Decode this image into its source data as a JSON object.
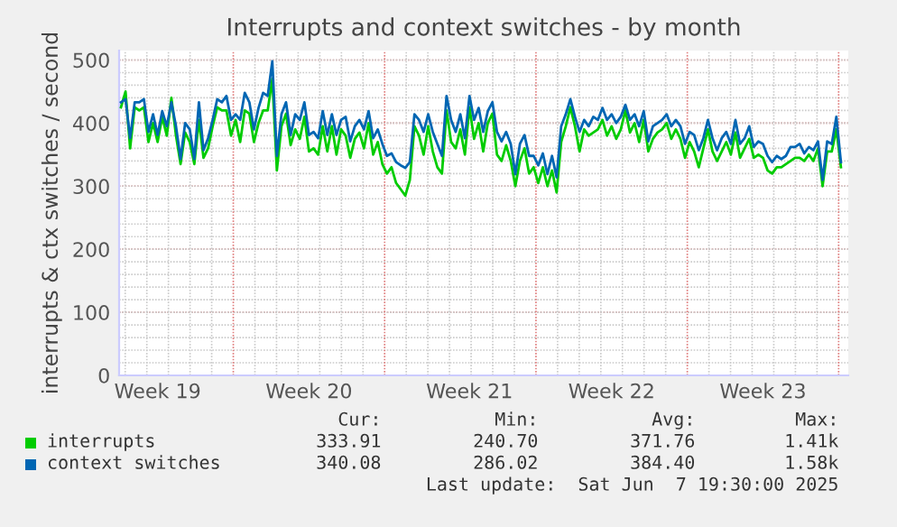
{
  "chart_data": {
    "type": "line",
    "title": "Interrupts and context switches - by month",
    "ylabel": "interrupts & ctx switches / second",
    "categories": [
      null,
      null,
      null,
      null,
      null,
      null,
      null,
      null,
      "Week 19",
      null,
      null,
      null,
      null,
      null,
      null,
      null,
      null,
      null,
      null,
      null,
      null,
      null,
      null,
      null,
      null,
      null,
      null,
      null,
      null,
      null,
      null,
      null,
      null,
      null,
      null,
      null,
      null,
      null,
      null,
      null,
      null,
      "Week 20",
      null,
      null,
      null,
      null,
      null,
      null,
      null,
      null,
      null,
      null,
      null,
      null,
      null,
      null,
      null,
      null,
      null,
      null,
      null,
      null,
      null,
      null,
      null,
      null,
      null,
      null,
      null,
      null,
      null,
      null,
      null,
      null,
      null,
      null,
      "Week 21",
      null,
      null,
      null,
      null,
      null,
      null,
      null,
      null,
      null,
      null,
      null,
      null,
      null,
      null,
      null,
      null,
      null,
      null,
      null,
      null,
      null,
      null,
      null,
      null,
      null,
      null,
      null,
      null,
      null,
      null,
      "Week 22",
      null,
      null,
      null,
      null,
      null,
      null,
      null,
      null,
      null,
      null,
      null,
      null,
      null,
      null,
      null,
      null,
      null,
      null,
      null,
      null,
      null,
      null,
      null,
      null,
      null,
      null,
      null,
      null,
      null,
      null,
      null,
      null,
      "Week 23",
      null,
      null,
      null,
      null,
      null,
      null,
      null,
      null,
      null,
      null,
      null,
      null,
      null,
      null,
      null,
      null,
      null
    ],
    "series": [
      {
        "name": "interrupts",
        "color": "#00cc00",
        "values": [
          425,
          450,
          360,
          425,
          420,
          425,
          370,
          400,
          370,
          410,
          380,
          440,
          380,
          335,
          385,
          370,
          335,
          405,
          345,
          360,
          395,
          425,
          420,
          420,
          380,
          405,
          370,
          420,
          415,
          370,
          400,
          420,
          420,
          470,
          325,
          395,
          415,
          365,
          390,
          375,
          410,
          355,
          360,
          350,
          395,
          355,
          395,
          350,
          390,
          380,
          345,
          375,
          385,
          360,
          400,
          350,
          370,
          335,
          320,
          330,
          305,
          295,
          285,
          310,
          395,
          380,
          350,
          395,
          355,
          330,
          320,
          420,
          370,
          360,
          390,
          350,
          425,
          375,
          400,
          355,
          400,
          415,
          350,
          340,
          365,
          340,
          300,
          340,
          360,
          320,
          330,
          305,
          330,
          300,
          325,
          290,
          370,
          395,
          425,
          395,
          355,
          390,
          380,
          385,
          390,
          405,
          380,
          395,
          375,
          390,
          420,
          385,
          400,
          370,
          405,
          355,
          375,
          385,
          390,
          400,
          375,
          390,
          375,
          345,
          370,
          355,
          330,
          360,
          390,
          355,
          340,
          355,
          370,
          350,
          385,
          345,
          360,
          375,
          345,
          350,
          345,
          325,
          320,
          330,
          330,
          335,
          340,
          345,
          345,
          340,
          350,
          340,
          360,
          300,
          355,
          355,
          390,
          330
        ]
      },
      {
        "name": "context switches",
        "color": "#0066b3",
        "values": [
          433,
          438,
          376,
          433,
          433,
          438,
          386,
          414,
          381,
          419,
          395,
          433,
          395,
          343,
          400,
          390,
          343,
          433,
          357,
          376,
          405,
          438,
          433,
          443,
          405,
          414,
          405,
          448,
          433,
          390,
          424,
          448,
          443,
          498,
          348,
          414,
          433,
          381,
          414,
          405,
          433,
          381,
          386,
          376,
          419,
          381,
          414,
          381,
          405,
          410,
          371,
          395,
          405,
          390,
          419,
          376,
          390,
          367,
          348,
          352,
          338,
          333,
          329,
          338,
          414,
          405,
          386,
          414,
          386,
          367,
          348,
          443,
          405,
          386,
          414,
          376,
          443,
          405,
          424,
          386,
          419,
          433,
          386,
          371,
          386,
          367,
          319,
          367,
          381,
          348,
          348,
          333,
          352,
          319,
          348,
          314,
          395,
          414,
          438,
          410,
          386,
          405,
          395,
          410,
          405,
          424,
          405,
          414,
          400,
          410,
          429,
          405,
          414,
          395,
          419,
          371,
          395,
          400,
          405,
          414,
          395,
          405,
          395,
          367,
          386,
          381,
          357,
          376,
          405,
          376,
          357,
          376,
          386,
          367,
          405,
          367,
          376,
          395,
          362,
          371,
          367,
          348,
          338,
          348,
          343,
          348,
          362,
          362,
          367,
          352,
          362,
          357,
          371,
          310,
          371,
          367,
          410,
          338
        ]
      }
    ],
    "ylim": [
      0,
      515
    ],
    "yticks": [
      0,
      100,
      200,
      300,
      400,
      500
    ],
    "grid": true,
    "legend": "bottom",
    "annotations": [
      "Cur:",
      "Min:",
      "Avg:",
      "Max:",
      "333.91",
      "240.70",
      "371.76",
      "1.41k",
      "340.08",
      "286.02",
      "384.40",
      "1.58k",
      "Last update:  Sat Jun  7 19:30:00 2025"
    ]
  }
}
